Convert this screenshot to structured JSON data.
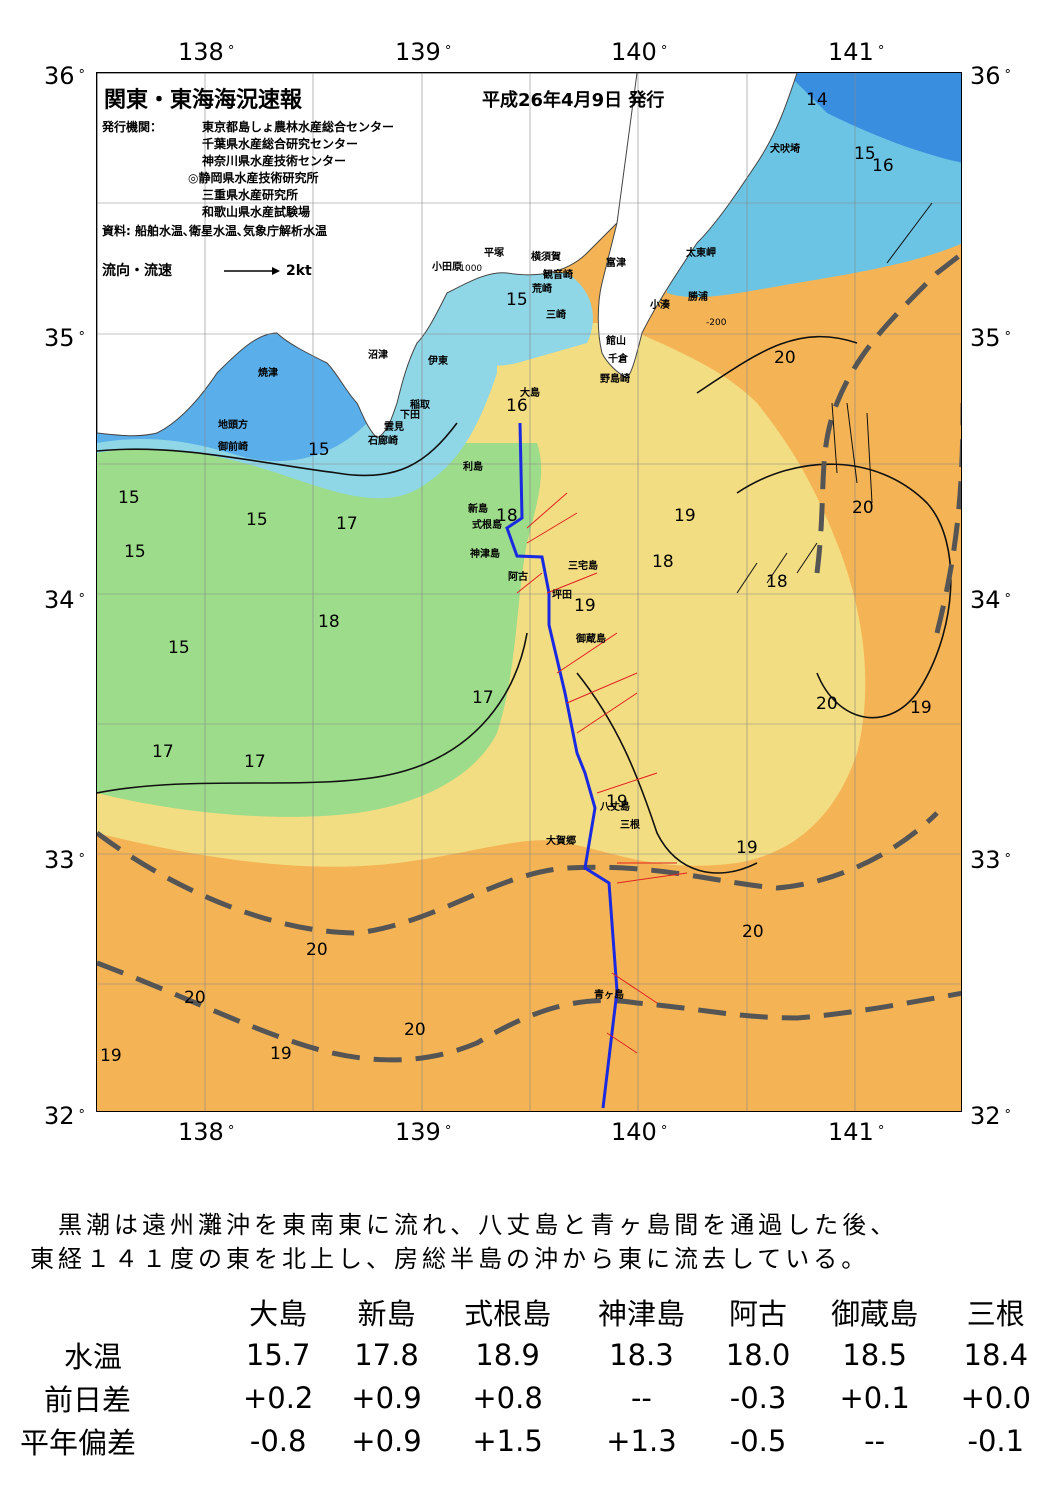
{
  "title": "関東・東海海況速報",
  "issue_date": "平成26年4月9日 発行",
  "issuer_label": "発行機関：",
  "issuers": [
    "東京都島しょ農林水産総合センター",
    "千葉県水産総合研究センター",
    "神奈川県水産技術センター",
    "◎静岡県水産技術研究所",
    "三重県水産研究所",
    "和歌山県水産試験場"
  ],
  "sources": "資料: 船舶水温､衛星水温､気象庁解析水温",
  "current_legend": {
    "label": "流向・流速",
    "value": "2kt"
  },
  "axes": {
    "longitude_labels": [
      "138",
      "139",
      "140",
      "141"
    ],
    "latitude_labels": [
      "36",
      "35",
      "34",
      "33",
      "32"
    ],
    "degree_symbol": "°"
  },
  "place_names": [
    "犬吠埼",
    "太東岬",
    "勝浦",
    "小湊",
    "富津",
    "観音崎",
    "横須賀",
    "平塚",
    "小田原",
    "荒崎",
    "三崎",
    "館山",
    "千倉",
    "野島崎",
    "沼津",
    "伊東",
    "焼津",
    "稲取",
    "下田",
    "雲見",
    "石廊崎",
    "地頭方",
    "御前崎",
    "大島",
    "利島",
    "新島",
    "式根島",
    "神津島",
    "三宅島",
    "阿古",
    "坪田",
    "御蔵島",
    "八丈島",
    "三根",
    "大賀郷",
    "青ヶ島"
  ],
  "contour_labels": [
    "14",
    "15",
    "16",
    "15",
    "16",
    "15",
    "15",
    "15",
    "15",
    "15",
    "17",
    "18",
    "19",
    "18",
    "19",
    "18",
    "17",
    "17",
    "17",
    "19",
    "20",
    "20",
    "19",
    "19",
    "20",
    "20",
    "20",
    "20",
    "19",
    "20",
    "19",
    "18",
    "-1000",
    "-200"
  ],
  "summary": [
    "　黒潮は遠州灘沖を東南東に流れ、八丈島と青ヶ島間を通過した後、",
    "東経１４１度の東を北上し、房総半島の沖から東に流去している。"
  ],
  "observation_table": {
    "stations": [
      "大島",
      "新島",
      "式根島",
      "神津島",
      "阿古",
      "御蔵島",
      "三根"
    ],
    "rows": [
      {
        "label": "水温",
        "values": [
          "15.7",
          "17.8",
          "18.9",
          "18.3",
          "18.0",
          "18.5",
          "18.4"
        ]
      },
      {
        "label": "前日差",
        "values": [
          "+0.2",
          "+0.9",
          "+0.8",
          "--",
          "-0.3",
          "+0.1",
          "+0.0"
        ]
      },
      {
        "label": "平年偏差",
        "values": [
          "-0.8",
          "+0.9",
          "+1.5",
          "+1.3",
          "-0.5",
          "--",
          "-0.1"
        ]
      }
    ]
  },
  "colors": {
    "land": "#ffffff",
    "very_cold": "#2e7fe0",
    "cold": "#6ab8ec",
    "cool": "#8ed8e2",
    "mid": "#8fd98a",
    "warmish": "#f2e08a",
    "warm": "#f4c060",
    "hot": "#f0a040",
    "kuroshio_axis": "#555555",
    "ship_track": "#1a2ae0",
    "current_vectors": "#e02020"
  }
}
